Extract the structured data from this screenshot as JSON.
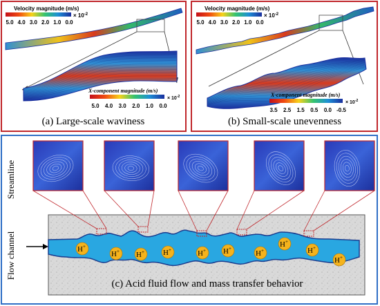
{
  "panel_a": {
    "caption": "(a) Large-scale waviness",
    "velocity_title": "Velocity magnitude (m/s)",
    "velocity_scale": "× 10",
    "velocity_exp": "-2",
    "velocity_ticks": [
      "5.0",
      "4.0",
      "3.0",
      "2.0",
      "1.0",
      "0.0"
    ],
    "xcomp_title": "X-component magnitude (m/s)",
    "xcomp_scale": "× 10",
    "xcomp_exp": "-2",
    "xcomp_ticks": [
      "5.0",
      "4.0",
      "3.0",
      "2.0",
      "1.0",
      "0.0"
    ]
  },
  "panel_b": {
    "caption": "(b) Small-scale unevenness",
    "velocity_title": "Velocity magnitude (m/s)",
    "velocity_scale": "× 10",
    "velocity_exp": "-2",
    "velocity_ticks": [
      "5.0",
      "4.0",
      "3.0",
      "2.0",
      "1.0",
      "0.0"
    ],
    "xcomp_title": "X-component magnitude (m/s)",
    "xcomp_scale": "× 10",
    "xcomp_exp": "-2",
    "xcomp_ticks": [
      "3.5",
      "2.5",
      "1.5",
      "0.5",
      "0.0",
      "-0.5"
    ]
  },
  "panel_c": {
    "caption": "(c) Acid fluid flow and mass transfer behavior",
    "streamline_label": "Streamline",
    "flow_channel_label": "Flow channel",
    "ion_label": "H",
    "ion_charge": "+",
    "ion_count": 10
  },
  "colors": {
    "panel_border_red": "#c0262b",
    "panel_border_blue": "#2f6fc6",
    "channel_fill": "#29a7e1",
    "channel_edge": "#1b3d8f",
    "ion_fill": "#f5b31c",
    "zoom_line": "#c0262b"
  }
}
